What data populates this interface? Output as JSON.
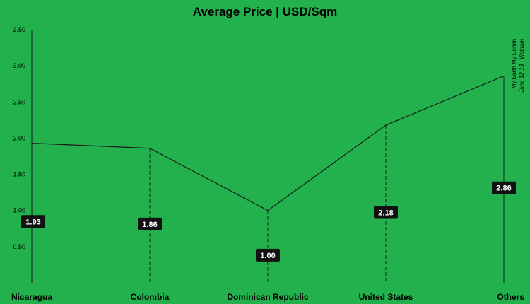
{
  "chart_data": {
    "type": "line",
    "title": "Average Price | USD/Sqm",
    "categories": [
      "Nicaragua",
      "Colombia",
      "Dominican Republic",
      "United States",
      "Others"
    ],
    "series": [
      {
        "values": [
          1.93,
          1.86,
          1.0,
          2.18,
          2.86
        ]
      }
    ],
    "data_labels": [
      "1.93",
      "1.86",
      "1.00",
      "2.18",
      "2.86"
    ],
    "ylim": [
      0,
      3.5
    ],
    "yticks": [
      0,
      0.5,
      1.0,
      1.5,
      2.0,
      2.5,
      3.0,
      3.5
    ],
    "ytick_labels": [
      "-",
      "0.50",
      "1.00",
      "1.50",
      "2.00",
      "2.50",
      "3.00",
      "3.50"
    ],
    "grid": false,
    "drop_lines": true,
    "colors": {
      "background": "#22b14c",
      "line": "#1a1a1a",
      "label_bg": "#111111",
      "label_text": "#ffffff"
    }
  },
  "watermark": {
    "line1": "My Earth My Denim",
    "line2": "June 12-13 | Vietnam"
  }
}
